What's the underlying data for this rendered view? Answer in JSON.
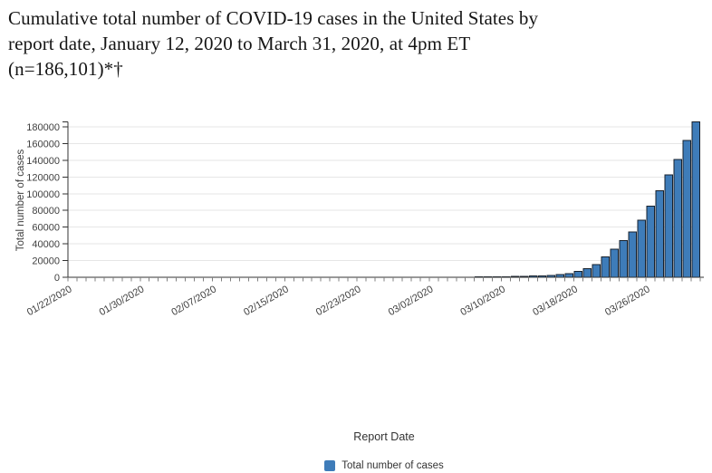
{
  "title": {
    "lines": [
      "Cumulative total number of COVID-19 cases in the United States by",
      "report date, January 12, 2020 to March 31, 2020, at 4pm ET",
      "(n=186,101)*†"
    ]
  },
  "chart_data": {
    "type": "bar",
    "title": "Cumulative total number of COVID-19 cases in the United States by report date, January 12, 2020 to March 31, 2020, at 4pm ET (n=186,101)*†",
    "xlabel": "Report Date",
    "ylabel": "Total number of cases",
    "legend": [
      "Total number of cases"
    ],
    "legend_position": "bottom",
    "grid": "horizontal",
    "ylim": [
      0,
      186101
    ],
    "yticks": [
      0,
      20000,
      40000,
      60000,
      80000,
      100000,
      120000,
      140000,
      160000,
      180000
    ],
    "xtick_label_every": 8,
    "xtick_rotation": -30,
    "xtick_labels_shown": [
      "01/22/2020",
      "01/30/2020",
      "02/07/2020",
      "02/15/2020",
      "02/23/2020",
      "03/02/2020",
      "03/10/2020",
      "03/18/2020",
      "03/26/2020"
    ],
    "categories": [
      "01/22/2020",
      "01/23/2020",
      "01/24/2020",
      "01/25/2020",
      "01/26/2020",
      "01/27/2020",
      "01/28/2020",
      "01/29/2020",
      "01/30/2020",
      "01/31/2020",
      "02/01/2020",
      "02/02/2020",
      "02/03/2020",
      "02/04/2020",
      "02/05/2020",
      "02/06/2020",
      "02/07/2020",
      "02/08/2020",
      "02/09/2020",
      "02/10/2020",
      "02/11/2020",
      "02/12/2020",
      "02/13/2020",
      "02/14/2020",
      "02/15/2020",
      "02/16/2020",
      "02/17/2020",
      "02/18/2020",
      "02/19/2020",
      "02/20/2020",
      "02/21/2020",
      "02/22/2020",
      "02/23/2020",
      "02/24/2020",
      "02/25/2020",
      "02/26/2020",
      "02/27/2020",
      "02/28/2020",
      "02/29/2020",
      "03/01/2020",
      "03/02/2020",
      "03/03/2020",
      "03/04/2020",
      "03/05/2020",
      "03/06/2020",
      "03/07/2020",
      "03/08/2020",
      "03/09/2020",
      "03/10/2020",
      "03/11/2020",
      "03/12/2020",
      "03/13/2020",
      "03/14/2020",
      "03/15/2020",
      "03/16/2020",
      "03/17/2020",
      "03/18/2020",
      "03/19/2020",
      "03/20/2020",
      "03/21/2020",
      "03/22/2020",
      "03/23/2020",
      "03/24/2020",
      "03/25/2020",
      "03/26/2020",
      "03/27/2020",
      "03/28/2020",
      "03/29/2020",
      "03/30/2020",
      "03/31/2020"
    ],
    "values": [
      1,
      1,
      2,
      2,
      5,
      5,
      5,
      5,
      6,
      7,
      8,
      8,
      11,
      11,
      12,
      12,
      12,
      12,
      12,
      13,
      13,
      13,
      15,
      15,
      15,
      15,
      15,
      15,
      15,
      15,
      34,
      34,
      34,
      51,
      53,
      57,
      58,
      60,
      66,
      75,
      91,
      118,
      149,
      217,
      262,
      338,
      417,
      472,
      696,
      987,
      1215,
      1629,
      1896,
      2179,
      3487,
      4226,
      7038,
      10442,
      15219,
      24583,
      33404,
      44183,
      54453,
      68440,
      85356,
      103321,
      122653,
      140904,
      163539,
      186101
    ],
    "colors": {
      "bar_fill": "#3e7cb9",
      "bar_border": "#17212d",
      "grid": "#e6e6e6",
      "axis": "#333333",
      "tick": "#808080",
      "label": "#404040"
    }
  }
}
